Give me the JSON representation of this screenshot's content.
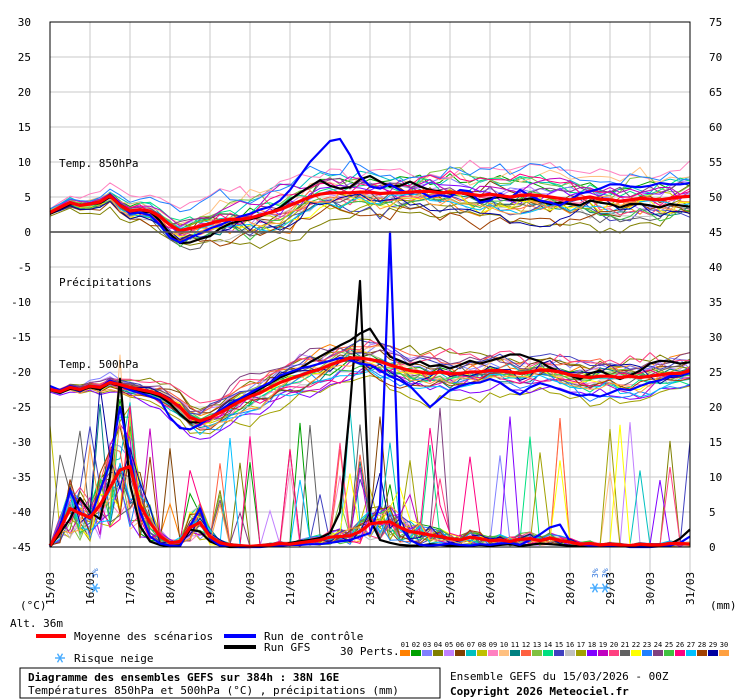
{
  "chart_data": {
    "type": "line",
    "title": "Diagramme des ensembles GEFS sur 384h : 38N 16E",
    "subtitle": "Températures 850hPa et 500hPa (°C) , précipitations (mm)",
    "ensemble_note": "Ensemble GEFS du 15/03/2026 - 00Z",
    "copyright": "Copyright 2026 Meteociel.fr",
    "altitude": "Alt. 36m",
    "left_unit": "(°C)",
    "right_unit": "(mm)",
    "annotations": {
      "t850": "Temp. 850hPa",
      "precip": "Précipitations",
      "t500": "Temp. 500hPa"
    },
    "left_axis": {
      "range": [
        -45,
        30
      ],
      "ticks": [
        30,
        25,
        20,
        15,
        10,
        5,
        0,
        -5,
        -10,
        -15,
        -20,
        -25,
        -30,
        -35,
        -40,
        -45
      ]
    },
    "right_axis": {
      "range": [
        0,
        75
      ],
      "ticks": [
        75,
        70,
        65,
        60,
        55,
        50,
        45,
        40,
        35,
        30,
        25,
        20,
        15,
        10,
        5,
        0
      ]
    },
    "x_ticks": [
      "15/03",
      "16/03",
      "17/03",
      "18/03",
      "19/03",
      "20/03",
      "21/03",
      "22/03",
      "23/03",
      "24/03",
      "25/03",
      "26/03",
      "27/03",
      "28/03",
      "29/03",
      "30/03",
      "31/03"
    ],
    "x": [
      0,
      6,
      12,
      18,
      24,
      30,
      36,
      42,
      48,
      54,
      60,
      66,
      72,
      78,
      84,
      90,
      96,
      102,
      108,
      114,
      120,
      126,
      132,
      138,
      144,
      150,
      156,
      162,
      168,
      174,
      180,
      186,
      192,
      198,
      204,
      210,
      216,
      222,
      228,
      234,
      240,
      246,
      252,
      258,
      264,
      270,
      276,
      282,
      288,
      294,
      300,
      306,
      312,
      318,
      324,
      330,
      336,
      342,
      348,
      354,
      360,
      366,
      372,
      378,
      384
    ],
    "series": [
      {
        "name": "Moyenne des scénarios",
        "color": "#ff0000",
        "width": 3.2,
        "t850": [
          2.8,
          3.5,
          4.2,
          3.8,
          4.0,
          4.3,
          5.2,
          3.8,
          3.0,
          3.2,
          3.0,
          2.2,
          1.0,
          0.2,
          0.5,
          0.8,
          1.2,
          1.6,
          1.8,
          1.8,
          2.0,
          2.4,
          2.8,
          3.2,
          3.8,
          4.4,
          5.0,
          5.4,
          5.6,
          5.6,
          5.6,
          5.7,
          5.7,
          5.5,
          5.6,
          5.6,
          5.7,
          5.8,
          5.8,
          5.6,
          5.7,
          5.6,
          5.4,
          5.2,
          5.4,
          5.2,
          5.0,
          5.2,
          5.3,
          5.2,
          5.0,
          4.8,
          4.6,
          4.8,
          5.0,
          4.7,
          4.6,
          4.4,
          4.6,
          4.8,
          4.7,
          4.6,
          4.8,
          5.0,
          5.1
        ],
        "t500": [
          -22.5,
          -22.8,
          -22.2,
          -22.5,
          -22.0,
          -22.2,
          -21.5,
          -21.8,
          -22.2,
          -22.5,
          -22.8,
          -23.2,
          -24.0,
          -25.0,
          -26.5,
          -27.0,
          -26.5,
          -25.8,
          -25.0,
          -24.2,
          -23.5,
          -23.0,
          -22.2,
          -21.5,
          -21.0,
          -20.5,
          -20.0,
          -19.6,
          -19.0,
          -18.5,
          -18.0,
          -18.0,
          -18.2,
          -18.5,
          -19.0,
          -19.4,
          -19.8,
          -20.0,
          -20.2,
          -20.0,
          -20.3,
          -20.2,
          -20.0,
          -20.0,
          -19.8,
          -19.8,
          -20.0,
          -20.2,
          -20.0,
          -19.7,
          -19.8,
          -20.0,
          -20.4,
          -20.6,
          -20.8,
          -20.6,
          -20.6,
          -20.8,
          -20.6,
          -20.8,
          -20.6,
          -20.4,
          -20.2,
          -20.2,
          -19.8
        ],
        "precip": [
          0.2,
          2.5,
          5.5,
          4.8,
          4.2,
          6.0,
          8.5,
          11.0,
          11.5,
          6.0,
          3.5,
          1.5,
          0.6,
          0.8,
          2.8,
          3.5,
          1.5,
          0.6,
          0.3,
          0.2,
          0.1,
          0.2,
          0.3,
          0.5,
          0.4,
          0.6,
          0.8,
          1.0,
          1.4,
          1.5,
          1.6,
          2.2,
          3.3,
          3.5,
          3.6,
          2.8,
          2.2,
          2.0,
          1.7,
          1.5,
          1.2,
          1.0,
          1.4,
          1.2,
          0.9,
          1.0,
          0.8,
          1.1,
          1.2,
          0.9,
          1.3,
          0.9,
          0.7,
          0.4,
          0.5,
          0.3,
          0.4,
          0.3,
          0.2,
          0.4,
          0.3,
          0.3,
          0.5,
          0.5,
          0.4
        ]
      },
      {
        "name": "Run de contrôle",
        "color": "#0000ff",
        "width": 2.2,
        "t850": [
          2.8,
          3.4,
          4.2,
          3.8,
          4.1,
          4.3,
          5.4,
          4.0,
          2.6,
          2.8,
          2.4,
          1.0,
          -0.8,
          -1.5,
          -0.8,
          -0.2,
          0.5,
          1.0,
          1.6,
          2.2,
          2.6,
          3.2,
          3.6,
          4.5,
          6.0,
          8.0,
          10.0,
          11.5,
          13.0,
          13.3,
          11.0,
          8.0,
          6.5,
          6.2,
          6.8,
          6.0,
          5.5,
          5.8,
          5.0,
          5.3,
          5.0,
          6.0,
          5.8,
          4.2,
          4.5,
          5.5,
          4.8,
          6.0,
          5.2,
          4.5,
          4.2,
          3.8,
          4.6,
          5.5,
          5.8,
          6.2,
          6.8,
          6.8,
          6.5,
          6.4,
          6.6,
          7.0,
          6.8,
          6.8,
          7.0
        ],
        "t500": [
          -22.0,
          -22.6,
          -22.0,
          -22.4,
          -22.0,
          -22.2,
          -21.2,
          -21.8,
          -22.6,
          -23.0,
          -23.5,
          -24.0,
          -26.5,
          -28.0,
          -28.2,
          -27.5,
          -26.5,
          -25.5,
          -24.5,
          -23.8,
          -23.0,
          -22.2,
          -21.5,
          -20.5,
          -20.0,
          -19.5,
          -19.2,
          -18.8,
          -18.4,
          -18.0,
          -18.3,
          -18.8,
          -19.0,
          -19.8,
          -20.6,
          -21.2,
          -22.0,
          -23.5,
          -25.0,
          -23.8,
          -22.6,
          -22.0,
          -21.6,
          -21.5,
          -21.0,
          -21.5,
          -22.5,
          -23.2,
          -22.2,
          -21.6,
          -22.0,
          -22.5,
          -23.0,
          -23.4,
          -23.2,
          -23.5,
          -23.0,
          -22.4,
          -22.6,
          -22.0,
          -21.5,
          -21.2,
          -20.6,
          -20.4,
          -20.2
        ],
        "precip": [
          0.1,
          3.0,
          8.0,
          5.0,
          4.0,
          8.0,
          12.0,
          20.0,
          13.0,
          5.0,
          1.5,
          0.5,
          0.2,
          0.1,
          3.0,
          5.5,
          1.2,
          0.2,
          0.1,
          0.0,
          0.0,
          0.0,
          0.1,
          0.2,
          0.3,
          0.3,
          0.4,
          0.4,
          0.6,
          0.8,
          1.0,
          1.5,
          2.0,
          6.0,
          45.0,
          3.0,
          1.0,
          0.3,
          0.2,
          0.3,
          0.5,
          0.3,
          0.2,
          0.4,
          0.3,
          0.5,
          0.6,
          0.3,
          1.0,
          1.8,
          2.8,
          3.2,
          0.8,
          0.4,
          0.2,
          0.2,
          0.1,
          0.2,
          0.0,
          0.0,
          0.0,
          0.1,
          0.2,
          0.6,
          1.5
        ]
      },
      {
        "name": "Run GFS",
        "color": "#000000",
        "width": 2.2,
        "t850": [
          2.6,
          3.3,
          4.0,
          3.9,
          4.0,
          4.1,
          5.0,
          4.0,
          3.0,
          2.7,
          2.9,
          1.6,
          -0.3,
          -1.6,
          -1.5,
          -1.0,
          -0.6,
          0.5,
          1.2,
          1.6,
          1.8,
          2.2,
          2.8,
          3.5,
          4.6,
          5.6,
          6.5,
          7.4,
          6.6,
          6.2,
          6.4,
          7.5,
          8.0,
          7.2,
          6.5,
          6.6,
          7.2,
          6.5,
          6.0,
          5.8,
          5.5,
          5.6,
          5.2,
          4.5,
          4.8,
          5.0,
          4.6,
          4.5,
          4.8,
          4.4,
          4.0,
          4.2,
          4.0,
          3.8,
          4.5,
          4.2,
          4.0,
          3.5,
          4.0,
          4.0,
          3.8,
          3.5,
          4.0,
          3.8,
          3.6
        ],
        "t500": [
          -22.6,
          -23.0,
          -22.4,
          -22.6,
          -22.2,
          -22.5,
          -21.6,
          -22.0,
          -22.5,
          -22.8,
          -23.0,
          -23.5,
          -24.5,
          -26.0,
          -27.2,
          -27.2,
          -26.6,
          -25.8,
          -24.8,
          -24.0,
          -23.2,
          -22.4,
          -21.6,
          -20.8,
          -20.2,
          -19.5,
          -18.6,
          -17.8,
          -17.0,
          -16.2,
          -15.5,
          -14.5,
          -13.8,
          -16.0,
          -17.8,
          -18.4,
          -19.0,
          -18.5,
          -19.2,
          -19.0,
          -19.5,
          -19.0,
          -18.4,
          -18.8,
          -18.4,
          -18.0,
          -17.5,
          -17.5,
          -18.0,
          -18.5,
          -19.4,
          -20.0,
          -20.5,
          -21.0,
          -20.2,
          -19.8,
          -20.5,
          -21.0,
          -20.5,
          -19.8,
          -18.8,
          -18.4,
          -18.5,
          -18.8,
          -18.6
        ],
        "precip": [
          0.0,
          2.0,
          4.0,
          7.0,
          5.0,
          4.0,
          10.0,
          24.0,
          9.0,
          3.0,
          0.8,
          0.3,
          0.1,
          0.2,
          2.5,
          2.2,
          0.8,
          0.2,
          0.0,
          0.0,
          0.0,
          0.1,
          0.2,
          0.3,
          0.6,
          0.8,
          1.0,
          1.3,
          2.0,
          5.0,
          20.0,
          38.0,
          4.0,
          1.0,
          0.6,
          0.3,
          0.2,
          0.2,
          0.4,
          0.3,
          0.2,
          0.1,
          0.2,
          0.3,
          0.2,
          0.3,
          0.4,
          0.2,
          0.3,
          0.5,
          0.4,
          0.3,
          0.2,
          0.1,
          0.2,
          0.1,
          0.3,
          0.2,
          0.1,
          0.2,
          0.2,
          0.3,
          0.4,
          1.2,
          2.5
        ]
      }
    ],
    "perturbations": {
      "count": 30,
      "seed": 7,
      "spread_850": 4.5,
      "spread_500": 4.0,
      "colors": [
        "#ff8000",
        "#00a000",
        "#8080ff",
        "#808000",
        "#c080ff",
        "#804000",
        "#00c0c0",
        "#c0c000",
        "#ff80c0",
        "#ffc080",
        "#008080",
        "#ff6040",
        "#80c040",
        "#00e080",
        "#4040c0",
        "#c0c0c0",
        "#a0a000",
        "#8000ff",
        "#c000c0",
        "#ff4080",
        "#606060",
        "#ffff00",
        "#2080ff",
        "#804080",
        "#40c040",
        "#ff0080",
        "#00c0ff",
        "#a04000",
        "#0000a0",
        "#ffa040"
      ]
    },
    "legend": [
      {
        "label": "Moyenne des scénarios",
        "color": "#ff0000"
      },
      {
        "label": "Run de contrôle",
        "color": "#0000ff"
      },
      {
        "label": "Run GFS",
        "color": "#000000"
      },
      {
        "label": "Risque neige",
        "color": "#44aaff"
      },
      {
        "label": "30 Perts.",
        "color": ""
      }
    ],
    "snow_markers": [
      {
        "x": 27,
        "label": "3%"
      },
      {
        "x": 327,
        "label": "3%"
      },
      {
        "x": 333,
        "label": "3%"
      }
    ]
  }
}
